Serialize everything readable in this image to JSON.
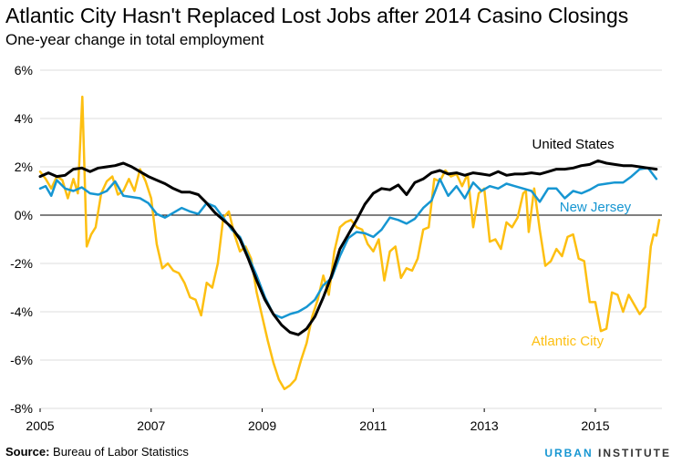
{
  "title": "Atlantic City Hasn't Replaced Lost Jobs after 2014 Casino Closings",
  "subtitle": "One-year change in total employment",
  "source_label": "Source:",
  "source_text": " Bureau of Labor Statistics",
  "brand_part1": "URBAN",
  "brand_part2": "INSTITUTE",
  "colors": {
    "us": "#000000",
    "nj": "#1696d2",
    "ac": "#fdbf11",
    "grid": "#dddddd",
    "zero": "#000000"
  },
  "chart_data": {
    "type": "line",
    "title": "Atlantic City Hasn't Replaced Lost Jobs after 2014 Casino Closings",
    "subtitle": "One-year change in total employment",
    "xlabel": "",
    "ylabel": "",
    "xlim": [
      2005,
      2016.2
    ],
    "ylim": [
      -8,
      6
    ],
    "xticks": [
      2005,
      2007,
      2009,
      2011,
      2013,
      2015
    ],
    "xtick_labels": [
      "2005",
      "2007",
      "2009",
      "2011",
      "2013",
      "2015"
    ],
    "yticks": [
      -8,
      -6,
      -4,
      -2,
      0,
      2,
      4,
      6
    ],
    "ytick_labels": [
      "-8%",
      "-6%",
      "-4%",
      "-2%",
      "0%",
      "2%",
      "4%",
      "6%"
    ],
    "grid": "horizontal",
    "series": [
      {
        "name": "United States",
        "key": "us",
        "label_pos": [
          2014.6,
          2.75
        ],
        "points": [
          [
            2005.0,
            1.6
          ],
          [
            2005.15,
            1.75
          ],
          [
            2005.3,
            1.6
          ],
          [
            2005.45,
            1.65
          ],
          [
            2005.6,
            1.9
          ],
          [
            2005.75,
            1.95
          ],
          [
            2005.9,
            1.8
          ],
          [
            2006.05,
            1.95
          ],
          [
            2006.2,
            2.0
          ],
          [
            2006.35,
            2.05
          ],
          [
            2006.5,
            2.15
          ],
          [
            2006.65,
            2.0
          ],
          [
            2006.8,
            1.8
          ],
          [
            2006.95,
            1.6
          ],
          [
            2007.1,
            1.45
          ],
          [
            2007.25,
            1.3
          ],
          [
            2007.4,
            1.1
          ],
          [
            2007.55,
            0.95
          ],
          [
            2007.7,
            0.95
          ],
          [
            2007.85,
            0.85
          ],
          [
            2008.0,
            0.5
          ],
          [
            2008.15,
            0.1
          ],
          [
            2008.3,
            -0.2
          ],
          [
            2008.45,
            -0.5
          ],
          [
            2008.6,
            -1.0
          ],
          [
            2008.75,
            -1.8
          ],
          [
            2008.9,
            -2.7
          ],
          [
            2009.05,
            -3.5
          ],
          [
            2009.2,
            -4.1
          ],
          [
            2009.35,
            -4.55
          ],
          [
            2009.5,
            -4.85
          ],
          [
            2009.65,
            -4.95
          ],
          [
            2009.8,
            -4.7
          ],
          [
            2009.95,
            -4.2
          ],
          [
            2010.1,
            -3.4
          ],
          [
            2010.25,
            -2.5
          ],
          [
            2010.4,
            -1.4
          ],
          [
            2010.55,
            -0.8
          ],
          [
            2010.7,
            -0.2
          ],
          [
            2010.85,
            0.45
          ],
          [
            2011.0,
            0.9
          ],
          [
            2011.15,
            1.1
          ],
          [
            2011.3,
            1.05
          ],
          [
            2011.45,
            1.25
          ],
          [
            2011.6,
            0.85
          ],
          [
            2011.75,
            1.35
          ],
          [
            2011.9,
            1.5
          ],
          [
            2012.05,
            1.75
          ],
          [
            2012.2,
            1.85
          ],
          [
            2012.35,
            1.7
          ],
          [
            2012.5,
            1.75
          ],
          [
            2012.65,
            1.65
          ],
          [
            2012.8,
            1.75
          ],
          [
            2012.95,
            1.7
          ],
          [
            2013.1,
            1.65
          ],
          [
            2013.25,
            1.8
          ],
          [
            2013.4,
            1.65
          ],
          [
            2013.55,
            1.7
          ],
          [
            2013.7,
            1.7
          ],
          [
            2013.85,
            1.75
          ],
          [
            2014.0,
            1.7
          ],
          [
            2014.15,
            1.8
          ],
          [
            2014.3,
            1.9
          ],
          [
            2014.45,
            1.9
          ],
          [
            2014.6,
            1.95
          ],
          [
            2014.75,
            2.05
          ],
          [
            2014.9,
            2.1
          ],
          [
            2015.05,
            2.25
          ],
          [
            2015.2,
            2.15
          ],
          [
            2015.35,
            2.1
          ],
          [
            2015.5,
            2.05
          ],
          [
            2015.65,
            2.05
          ],
          [
            2015.8,
            2.0
          ],
          [
            2015.95,
            1.95
          ],
          [
            2016.1,
            1.9
          ]
        ]
      },
      {
        "name": "New Jersey",
        "key": "nj",
        "label_pos": [
          2015.0,
          0.15
        ],
        "points": [
          [
            2005.0,
            1.1
          ],
          [
            2005.1,
            1.2
          ],
          [
            2005.2,
            0.8
          ],
          [
            2005.3,
            1.45
          ],
          [
            2005.45,
            1.1
          ],
          [
            2005.6,
            1.0
          ],
          [
            2005.75,
            1.15
          ],
          [
            2005.9,
            0.9
          ],
          [
            2006.05,
            0.85
          ],
          [
            2006.2,
            1.0
          ],
          [
            2006.35,
            1.4
          ],
          [
            2006.5,
            0.8
          ],
          [
            2006.65,
            0.75
          ],
          [
            2006.8,
            0.7
          ],
          [
            2006.95,
            0.5
          ],
          [
            2007.1,
            0.05
          ],
          [
            2007.25,
            -0.1
          ],
          [
            2007.4,
            0.1
          ],
          [
            2007.55,
            0.3
          ],
          [
            2007.7,
            0.15
          ],
          [
            2007.85,
            0.05
          ],
          [
            2008.0,
            0.5
          ],
          [
            2008.15,
            0.35
          ],
          [
            2008.3,
            -0.1
          ],
          [
            2008.45,
            -0.6
          ],
          [
            2008.6,
            -0.9
          ],
          [
            2008.75,
            -1.7
          ],
          [
            2008.9,
            -2.5
          ],
          [
            2009.05,
            -3.4
          ],
          [
            2009.2,
            -4.1
          ],
          [
            2009.35,
            -4.25
          ],
          [
            2009.5,
            -4.1
          ],
          [
            2009.65,
            -4.0
          ],
          [
            2009.8,
            -3.8
          ],
          [
            2009.95,
            -3.5
          ],
          [
            2010.1,
            -2.9
          ],
          [
            2010.25,
            -2.6
          ],
          [
            2010.4,
            -1.7
          ],
          [
            2010.55,
            -0.95
          ],
          [
            2010.7,
            -0.7
          ],
          [
            2010.85,
            -0.75
          ],
          [
            2011.0,
            -0.9
          ],
          [
            2011.15,
            -0.6
          ],
          [
            2011.3,
            -0.1
          ],
          [
            2011.45,
            -0.2
          ],
          [
            2011.6,
            -0.35
          ],
          [
            2011.75,
            -0.15
          ],
          [
            2011.9,
            0.3
          ],
          [
            2012.05,
            0.6
          ],
          [
            2012.2,
            1.5
          ],
          [
            2012.35,
            0.8
          ],
          [
            2012.5,
            1.2
          ],
          [
            2012.65,
            0.7
          ],
          [
            2012.8,
            1.35
          ],
          [
            2012.95,
            1.0
          ],
          [
            2013.1,
            1.2
          ],
          [
            2013.25,
            1.1
          ],
          [
            2013.4,
            1.3
          ],
          [
            2013.55,
            1.2
          ],
          [
            2013.7,
            1.1
          ],
          [
            2013.85,
            1.0
          ],
          [
            2014.0,
            0.55
          ],
          [
            2014.15,
            1.1
          ],
          [
            2014.3,
            1.1
          ],
          [
            2014.45,
            0.7
          ],
          [
            2014.6,
            1.0
          ],
          [
            2014.75,
            0.9
          ],
          [
            2014.9,
            1.05
          ],
          [
            2015.05,
            1.25
          ],
          [
            2015.2,
            1.3
          ],
          [
            2015.35,
            1.35
          ],
          [
            2015.5,
            1.35
          ],
          [
            2015.65,
            1.6
          ],
          [
            2015.8,
            1.9
          ],
          [
            2015.95,
            1.95
          ],
          [
            2016.1,
            1.5
          ]
        ]
      },
      {
        "name": "Atlantic City",
        "key": "ac",
        "label_pos": [
          2014.5,
          -5.4
        ],
        "points": [
          [
            2005.0,
            1.8
          ],
          [
            2005.1,
            1.5
          ],
          [
            2005.2,
            1.1
          ],
          [
            2005.3,
            1.6
          ],
          [
            2005.4,
            1.45
          ],
          [
            2005.5,
            0.7
          ],
          [
            2005.6,
            1.5
          ],
          [
            2005.68,
            0.9
          ],
          [
            2005.76,
            4.9
          ],
          [
            2005.84,
            -1.3
          ],
          [
            2005.92,
            -0.8
          ],
          [
            2006.0,
            -0.5
          ],
          [
            2006.1,
            0.9
          ],
          [
            2006.2,
            1.4
          ],
          [
            2006.3,
            1.6
          ],
          [
            2006.4,
            0.85
          ],
          [
            2006.5,
            1.0
          ],
          [
            2006.6,
            1.5
          ],
          [
            2006.7,
            1.0
          ],
          [
            2006.8,
            1.9
          ],
          [
            2006.9,
            1.4
          ],
          [
            2007.0,
            0.7
          ],
          [
            2007.1,
            -1.2
          ],
          [
            2007.2,
            -2.2
          ],
          [
            2007.3,
            -2.0
          ],
          [
            2007.4,
            -2.3
          ],
          [
            2007.5,
            -2.4
          ],
          [
            2007.6,
            -2.8
          ],
          [
            2007.7,
            -3.4
          ],
          [
            2007.8,
            -3.5
          ],
          [
            2007.9,
            -4.15
          ],
          [
            2008.0,
            -2.8
          ],
          [
            2008.1,
            -3.0
          ],
          [
            2008.2,
            -2.0
          ],
          [
            2008.3,
            -0.1
          ],
          [
            2008.4,
            0.15
          ],
          [
            2008.5,
            -0.8
          ],
          [
            2008.6,
            -1.5
          ],
          [
            2008.7,
            -1.3
          ],
          [
            2008.8,
            -1.8
          ],
          [
            2008.9,
            -3.2
          ],
          [
            2009.0,
            -4.2
          ],
          [
            2009.1,
            -5.2
          ],
          [
            2009.2,
            -6.1
          ],
          [
            2009.3,
            -6.8
          ],
          [
            2009.4,
            -7.2
          ],
          [
            2009.5,
            -7.05
          ],
          [
            2009.6,
            -6.8
          ],
          [
            2009.7,
            -6.0
          ],
          [
            2009.8,
            -5.3
          ],
          [
            2009.9,
            -4.2
          ],
          [
            2010.0,
            -3.5
          ],
          [
            2010.1,
            -2.5
          ],
          [
            2010.2,
            -3.3
          ],
          [
            2010.3,
            -1.5
          ],
          [
            2010.4,
            -0.5
          ],
          [
            2010.5,
            -0.3
          ],
          [
            2010.6,
            -0.2
          ],
          [
            2010.7,
            -0.5
          ],
          [
            2010.8,
            -0.6
          ],
          [
            2010.9,
            -1.2
          ],
          [
            2011.0,
            -1.5
          ],
          [
            2011.1,
            -1.0
          ],
          [
            2011.2,
            -2.7
          ],
          [
            2011.3,
            -1.5
          ],
          [
            2011.4,
            -1.3
          ],
          [
            2011.5,
            -2.6
          ],
          [
            2011.6,
            -2.2
          ],
          [
            2011.7,
            -2.3
          ],
          [
            2011.8,
            -1.8
          ],
          [
            2011.9,
            -0.6
          ],
          [
            2012.0,
            -0.5
          ],
          [
            2012.1,
            1.5
          ],
          [
            2012.2,
            1.4
          ],
          [
            2012.3,
            1.85
          ],
          [
            2012.4,
            1.6
          ],
          [
            2012.5,
            1.7
          ],
          [
            2012.6,
            1.2
          ],
          [
            2012.7,
            1.7
          ],
          [
            2012.8,
            -0.5
          ],
          [
            2012.9,
            0.9
          ],
          [
            2013.0,
            1.1
          ],
          [
            2013.1,
            -1.1
          ],
          [
            2013.2,
            -1.0
          ],
          [
            2013.3,
            -1.4
          ],
          [
            2013.4,
            -0.3
          ],
          [
            2013.5,
            -0.5
          ],
          [
            2013.6,
            -0.1
          ],
          [
            2013.7,
            0.9
          ],
          [
            2013.75,
            1.0
          ],
          [
            2013.8,
            -0.7
          ],
          [
            2013.9,
            1.1
          ],
          [
            2014.0,
            -0.6
          ],
          [
            2014.1,
            -2.1
          ],
          [
            2014.2,
            -1.9
          ],
          [
            2014.3,
            -1.4
          ],
          [
            2014.4,
            -1.7
          ],
          [
            2014.5,
            -0.9
          ],
          [
            2014.6,
            -0.8
          ],
          [
            2014.7,
            -1.8
          ],
          [
            2014.8,
            -1.9
          ],
          [
            2014.9,
            -3.6
          ],
          [
            2015.0,
            -3.6
          ],
          [
            2015.1,
            -4.8
          ],
          [
            2015.2,
            -4.7
          ],
          [
            2015.3,
            -3.2
          ],
          [
            2015.4,
            -3.3
          ],
          [
            2015.5,
            -4.0
          ],
          [
            2015.6,
            -3.3
          ],
          [
            2015.7,
            -3.7
          ],
          [
            2015.8,
            -4.1
          ],
          [
            2015.9,
            -3.8
          ],
          [
            2016.0,
            -1.3
          ],
          [
            2016.05,
            -0.8
          ],
          [
            2016.1,
            -0.85
          ],
          [
            2016.15,
            -0.2
          ]
        ]
      }
    ],
    "legend": "inline labels at line ends"
  }
}
